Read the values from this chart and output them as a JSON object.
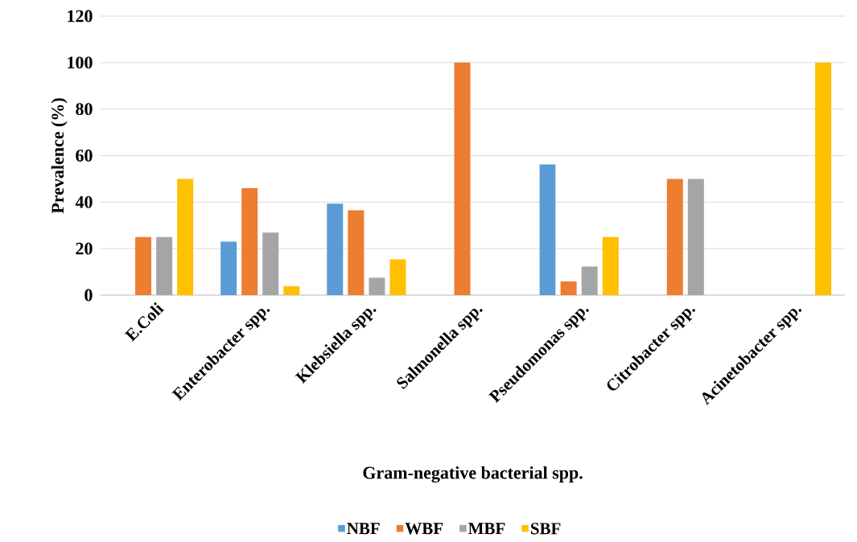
{
  "chart_data": {
    "type": "bar",
    "xlabel": "Gram-negative bacterial spp.",
    "ylabel": "Prevalence (%)",
    "categories": [
      "E.Coli",
      "Enterobacter spp.",
      "Klebsiella spp.",
      "Salmonella spp.",
      "Pseudomonas spp.",
      "Citrobacter spp.",
      "Acinetobacter spp."
    ],
    "series": [
      {
        "name": "NBF",
        "color": "#5b9bd5",
        "values": [
          null,
          23,
          39.3,
          null,
          56.2,
          null,
          null
        ]
      },
      {
        "name": "WBF",
        "color": "#ed7d31",
        "values": [
          25,
          46,
          36.5,
          100,
          5.9,
          50,
          null
        ]
      },
      {
        "name": "MBF",
        "color": "#a5a5a5",
        "values": [
          25,
          26.9,
          7.5,
          null,
          12.3,
          50,
          null
        ]
      },
      {
        "name": "SBF",
        "color": "#ffc000",
        "values": [
          50,
          3.8,
          15.4,
          null,
          25,
          null,
          100
        ]
      }
    ],
    "ylim": [
      0,
      120
    ],
    "yticks": [
      0,
      20,
      40,
      60,
      80,
      100,
      120
    ],
    "grid": "y",
    "legend": "bottom"
  }
}
